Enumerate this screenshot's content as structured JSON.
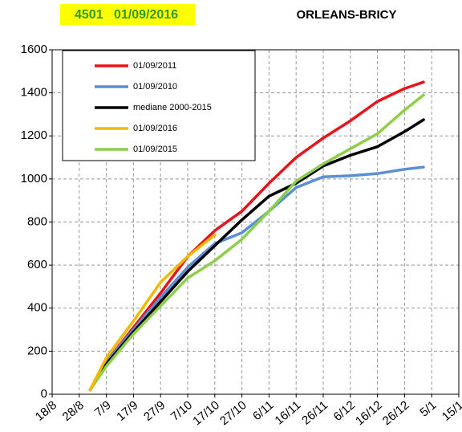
{
  "chart_data": {
    "type": "line",
    "station_id": "4501",
    "date": "01/09/2016",
    "title": "ORLEANS-BRICY",
    "xlim": [
      0,
      150
    ],
    "xticks": [
      {
        "value": 0,
        "label": "18/8"
      },
      {
        "value": 10,
        "label": "28/8"
      },
      {
        "value": 20,
        "label": "7/9"
      },
      {
        "value": 30,
        "label": "17/9"
      },
      {
        "value": 40,
        "label": "27/9"
      },
      {
        "value": 50,
        "label": "7/10"
      },
      {
        "value": 60,
        "label": "17/10"
      },
      {
        "value": 70,
        "label": "27/10"
      },
      {
        "value": 80,
        "label": "6/11"
      },
      {
        "value": 90,
        "label": "16/11"
      },
      {
        "value": 100,
        "label": "26/11"
      },
      {
        "value": 110,
        "label": "6/12"
      },
      {
        "value": 120,
        "label": "16/12"
      },
      {
        "value": 130,
        "label": "26/12"
      },
      {
        "value": 140,
        "label": "5/1"
      },
      {
        "value": 150,
        "label": "15/1"
      }
    ],
    "ylim": [
      0,
      1600
    ],
    "yticks": [
      0,
      200,
      400,
      600,
      800,
      1000,
      1200,
      1400,
      1600
    ],
    "grid": true,
    "legend": "top-left",
    "series": [
      {
        "name": "01/09/2011",
        "color": "#e8141c",
        "x": [
          14,
          20,
          30,
          40,
          50,
          60,
          70,
          80,
          90,
          100,
          110,
          120,
          130,
          137
        ],
        "values": [
          20,
          150,
          310,
          470,
          640,
          760,
          850,
          980,
          1100,
          1190,
          1270,
          1360,
          1420,
          1450
        ]
      },
      {
        "name": "01/09/2010",
        "color": "#5b8fd4",
        "x": [
          14,
          20,
          30,
          40,
          50,
          60,
          70,
          80,
          90,
          100,
          110,
          120,
          130,
          137
        ],
        "values": [
          20,
          150,
          300,
          450,
          590,
          700,
          750,
          850,
          960,
          1010,
          1015,
          1025,
          1045,
          1055
        ]
      },
      {
        "name": "mediane 2000-2015",
        "color": "#000000",
        "x": [
          14,
          20,
          30,
          40,
          50,
          60,
          70,
          80,
          90,
          100,
          110,
          120,
          130,
          137
        ],
        "values": [
          20,
          140,
          290,
          430,
          570,
          690,
          810,
          920,
          980,
          1060,
          1110,
          1150,
          1220,
          1275
        ]
      },
      {
        "name": "01/09/2016",
        "color": "#f5b800",
        "x": [
          14,
          20,
          30,
          40,
          50,
          60
        ],
        "values": [
          20,
          170,
          340,
          520,
          640,
          740
        ]
      },
      {
        "name": "01/09/2015",
        "color": "#8dce4a",
        "x": [
          14,
          20,
          30,
          40,
          50,
          60,
          70,
          80,
          90,
          100,
          110,
          120,
          130,
          137
        ],
        "values": [
          20,
          130,
          280,
          410,
          540,
          620,
          720,
          850,
          990,
          1070,
          1140,
          1210,
          1320,
          1390
        ]
      }
    ]
  }
}
